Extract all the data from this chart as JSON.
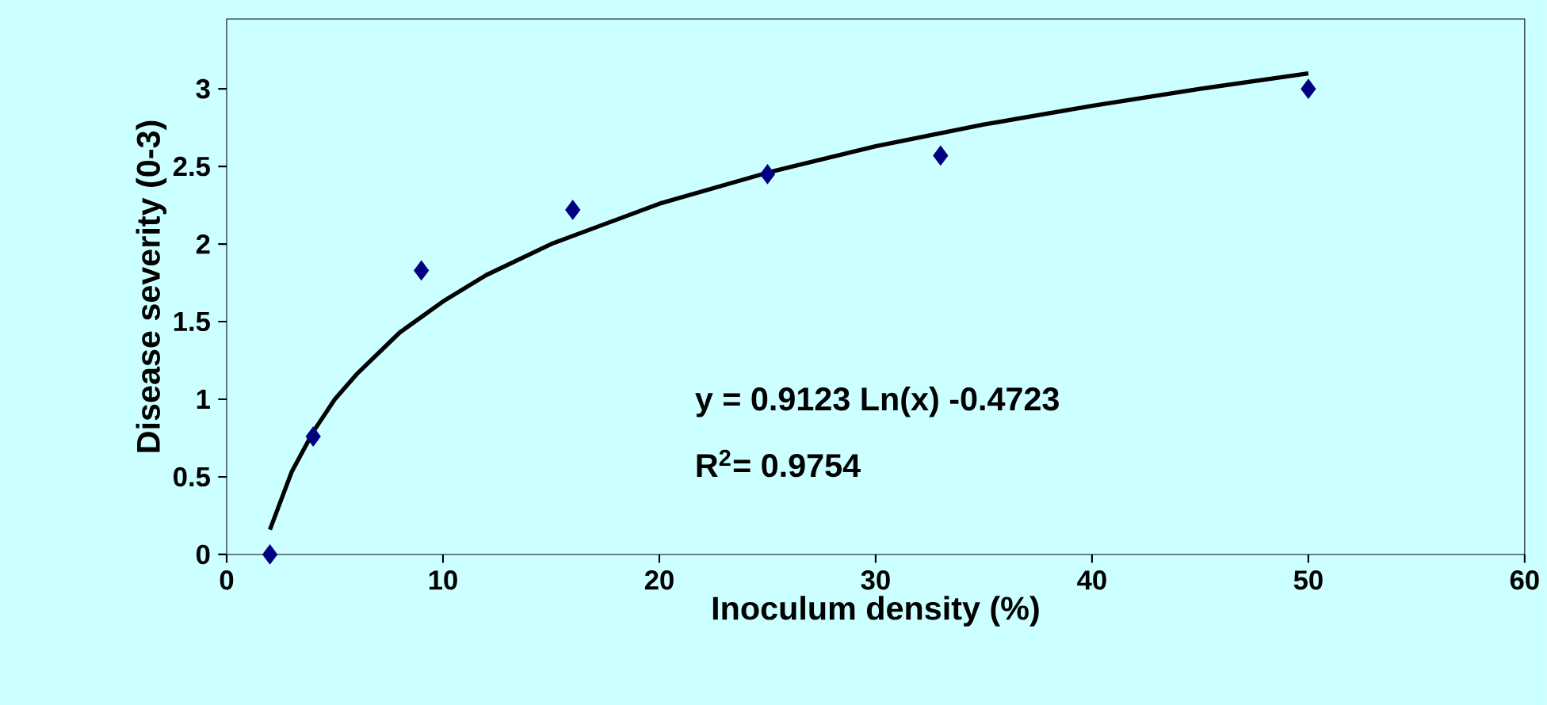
{
  "chart_data": {
    "type": "scatter",
    "xlabel": "Inoculum density (%)",
    "ylabel": "Disease severity (0-3)",
    "series": [
      {
        "color": "#000080",
        "marker": "diamond",
        "x": [
          2,
          4,
          9,
          16,
          25,
          33,
          50
        ],
        "values": [
          0.0,
          0.76,
          1.83,
          2.22,
          2.45,
          2.57,
          3.0
        ]
      },
      {
        "type": "line",
        "color": "#000000",
        "marker": "none",
        "line_style": "solid",
        "x": [
          2,
          3,
          4,
          5,
          6,
          8,
          10,
          12,
          15,
          20,
          25,
          30,
          35,
          40,
          45,
          50
        ],
        "values": [
          0.16,
          0.53,
          0.79,
          1.0,
          1.16,
          1.43,
          1.63,
          1.8,
          2.0,
          2.26,
          2.46,
          2.63,
          2.77,
          2.89,
          3.0,
          3.1
        ]
      }
    ],
    "xlim": [
      0,
      60
    ],
    "ylim": [
      0,
      3.45
    ],
    "xticks": [
      0,
      10,
      20,
      30,
      40,
      50,
      60
    ],
    "yticks": [
      0,
      0.5,
      1,
      1.5,
      2,
      2.5,
      3
    ],
    "annotations": [
      "y = 0.9123 Ln(x) -0.4723",
      "R$^{2}$= 0.9754"
    ],
    "grid": false
  }
}
